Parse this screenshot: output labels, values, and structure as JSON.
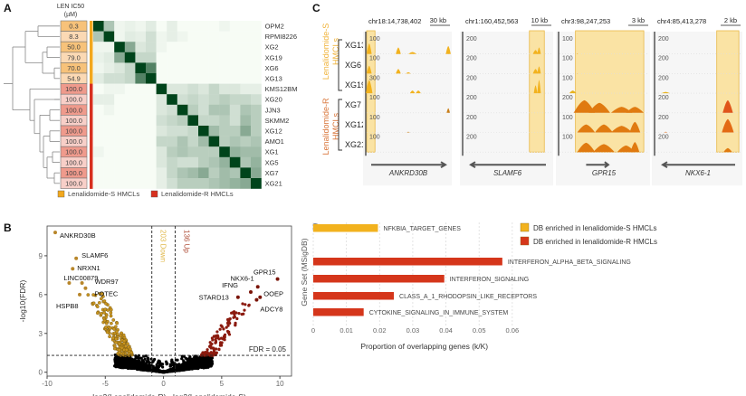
{
  "panels": {
    "A": {
      "letter": "A",
      "ic50_header": [
        "LEN IC50",
        "(µM)"
      ],
      "cell_lines": [
        "OPM2",
        "RPMI8226",
        "XG2",
        "XG19",
        "XG6",
        "XG13",
        "KMS12BM",
        "XG20",
        "JJN3",
        "SKMM2",
        "XG12",
        "AMO1",
        "XG1",
        "XG5",
        "XG7",
        "XG21"
      ],
      "ic50_values": [
        "0.3",
        "8.3",
        "50.0",
        "79.0",
        "70.0",
        "54.9",
        "100.0",
        "100.0",
        "100.0",
        "100.0",
        "100.0",
        "100.0",
        "100.0",
        "100.0",
        "100.0",
        "100.0"
      ],
      "group": [
        "S",
        "S",
        "S",
        "S",
        "S",
        "S",
        "R",
        "R",
        "R",
        "R",
        "R",
        "R",
        "R",
        "R",
        "R",
        "R"
      ],
      "legend": [
        {
          "label": "Lenalidomide-S HMCLs",
          "color": "#f2a81e"
        },
        {
          "label": "Lenalidomide-R HMCLs",
          "color": "#d7301f"
        }
      ],
      "heatmap_type": "correlation",
      "heatmap_scale": "white-to-dark-green",
      "heatmap_values": [
        [
          1.0,
          0.35,
          0.05,
          0.08,
          0.05,
          0.12,
          0.0,
          0.1,
          0.0,
          0.0,
          0.0,
          0.0,
          0.05,
          0.0,
          0.0,
          0.0
        ],
        [
          0.35,
          1.0,
          0.05,
          0.12,
          0.1,
          0.2,
          0.05,
          0.1,
          0.05,
          0.0,
          0.0,
          0.0,
          0.0,
          0.0,
          0.0,
          0.0
        ],
        [
          0.05,
          0.05,
          1.0,
          0.5,
          0.15,
          0.2,
          0.05,
          0.0,
          0.0,
          0.0,
          0.0,
          0.0,
          0.0,
          0.0,
          0.0,
          0.0
        ],
        [
          0.08,
          0.12,
          0.5,
          1.0,
          0.25,
          0.25,
          0.0,
          0.0,
          0.0,
          0.0,
          0.0,
          0.0,
          0.0,
          0.0,
          0.0,
          0.0
        ],
        [
          0.05,
          0.1,
          0.15,
          0.25,
          1.0,
          0.7,
          0.0,
          0.0,
          0.0,
          0.0,
          0.0,
          0.0,
          0.0,
          0.0,
          0.0,
          0.0
        ],
        [
          0.12,
          0.2,
          0.2,
          0.25,
          0.7,
          1.0,
          0.0,
          0.0,
          0.0,
          0.0,
          0.0,
          0.0,
          0.0,
          0.0,
          0.0,
          0.0
        ],
        [
          0.0,
          0.05,
          0.05,
          0.0,
          0.0,
          0.0,
          1.0,
          0.15,
          0.15,
          0.2,
          0.15,
          0.25,
          0.15,
          0.15,
          0.1,
          0.1
        ],
        [
          0.1,
          0.1,
          0.0,
          0.0,
          0.0,
          0.0,
          0.15,
          1.0,
          0.2,
          0.25,
          0.2,
          0.25,
          0.3,
          0.25,
          0.25,
          0.2
        ],
        [
          0.0,
          0.05,
          0.0,
          0.0,
          0.0,
          0.0,
          0.15,
          0.2,
          1.0,
          0.3,
          0.2,
          0.35,
          0.35,
          0.2,
          0.35,
          0.3
        ],
        [
          0.0,
          0.0,
          0.0,
          0.0,
          0.0,
          0.0,
          0.2,
          0.25,
          0.3,
          1.0,
          0.25,
          0.25,
          0.3,
          0.2,
          0.4,
          0.3
        ],
        [
          0.0,
          0.0,
          0.0,
          0.0,
          0.0,
          0.0,
          0.15,
          0.2,
          0.2,
          0.25,
          1.0,
          0.4,
          0.3,
          0.3,
          0.5,
          0.3
        ],
        [
          0.0,
          0.0,
          0.0,
          0.0,
          0.0,
          0.0,
          0.25,
          0.25,
          0.35,
          0.25,
          0.4,
          1.0,
          0.3,
          0.35,
          0.3,
          0.35
        ],
        [
          0.05,
          0.0,
          0.0,
          0.0,
          0.0,
          0.0,
          0.15,
          0.3,
          0.35,
          0.3,
          0.3,
          0.3,
          1.0,
          0.45,
          0.4,
          0.4
        ],
        [
          0.0,
          0.0,
          0.0,
          0.0,
          0.0,
          0.0,
          0.15,
          0.25,
          0.2,
          0.2,
          0.3,
          0.35,
          0.45,
          1.0,
          0.35,
          0.45
        ],
        [
          0.0,
          0.0,
          0.0,
          0.0,
          0.0,
          0.0,
          0.1,
          0.25,
          0.35,
          0.4,
          0.5,
          0.3,
          0.4,
          0.35,
          1.0,
          0.5
        ],
        [
          0.0,
          0.0,
          0.0,
          0.0,
          0.0,
          0.0,
          0.1,
          0.2,
          0.3,
          0.3,
          0.3,
          0.35,
          0.4,
          0.45,
          0.5,
          1.0
        ]
      ]
    },
    "C": {
      "letter": "C",
      "group_labels": [
        {
          "lines": [
            "Lenalidomide-S",
            "HMCLs"
          ],
          "color": "#f0b43c"
        },
        {
          "lines": [
            "Lenalidomide-R",
            "HMCLs"
          ],
          "color": "#d9763a"
        }
      ],
      "samples": [
        "XG13",
        "XG6",
        "XG19",
        "XG7",
        "XG12",
        "XG21"
      ],
      "tracks": [
        {
          "locus": "chr18:14,738,402",
          "scale": "30 kb",
          "gene": "ANKRD30B",
          "direction": "right",
          "ymax": [
            "100",
            "100",
            "300",
            "100",
            "100",
            "100"
          ]
        },
        {
          "locus": "chr1:160,452,563",
          "scale": "10 kb",
          "gene": "SLAMF6",
          "direction": "left",
          "ymax": [
            "200",
            "200",
            "200",
            "200",
            "200",
            "200"
          ]
        },
        {
          "locus": "chr3:98,247,253",
          "scale": "3 kb",
          "gene": "GPR15",
          "direction": "right",
          "ymax": [
            "100",
            "100",
            "100",
            "200",
            "100",
            "100"
          ]
        },
        {
          "locus": "chr4:85,413,278",
          "scale": "2 kb",
          "gene": "NKX6-1",
          "direction": "left",
          "ymax": [
            "200",
            "200",
            "200",
            "200",
            "200",
            "200"
          ]
        }
      ]
    },
    "B": {
      "letter": "B",
      "annotations": {
        "down": "203 Down",
        "up": "136 Up",
        "fdr": "FDR = 0.05"
      }
    },
    "D": {
      "letter": "D",
      "legend": [
        {
          "label": "DB enriched in lenalidomide-S HMCLs",
          "color": "#f2b21e"
        },
        {
          "label": "DB enriched in lenalidomide-R HMCLs",
          "color": "#d5361b"
        }
      ]
    }
  },
  "chart_data": [
    {
      "panel": "B",
      "type": "scatter",
      "title": "",
      "xlabel": "log2(Lenalidomide-R) - log2(Lenalidomide-S)",
      "ylabel": "-log10(FDR)",
      "xlim": [
        -10,
        11
      ],
      "ylim": [
        -0.3,
        11.3
      ],
      "xticks": [
        -10,
        -5,
        0,
        5,
        10
      ],
      "yticks": [
        0,
        3,
        6,
        9
      ],
      "vlines": [
        -1,
        1
      ],
      "hline": 1.3,
      "series": [
        {
          "name": "Down (S-enriched)",
          "color": "#c8941e",
          "count": 203
        },
        {
          "name": "Up (R-enriched)",
          "color": "#8b1a0e",
          "count": 136
        },
        {
          "name": "Not significant",
          "color": "#000000"
        }
      ],
      "labeled_points": [
        {
          "label": "ANKRD30B",
          "x": -9.3,
          "y": 10.8,
          "group": "down"
        },
        {
          "label": "SLAMF6",
          "x": -7.5,
          "y": 8.8,
          "group": "down"
        },
        {
          "label": "NRXN1",
          "x": -7.8,
          "y": 8.0,
          "group": "down"
        },
        {
          "label": "LINC00879",
          "x": -8.1,
          "y": 6.9,
          "group": "down"
        },
        {
          "label": "WDR97",
          "x": -7.0,
          "y": 6.9,
          "group": "down"
        },
        {
          "label": "POTEC",
          "x": -6.7,
          "y": 6.5,
          "group": "down"
        },
        {
          "label": "HSPB8",
          "x": -7.2,
          "y": 6.0,
          "group": "down"
        },
        {
          "label": "GPR15",
          "x": 9.8,
          "y": 7.2,
          "group": "up"
        },
        {
          "label": "NKX6-1",
          "x": 8.1,
          "y": 6.6,
          "group": "up"
        },
        {
          "label": "OOEP",
          "x": 8.3,
          "y": 5.8,
          "group": "up"
        },
        {
          "label": "IFNG",
          "x": 7.5,
          "y": 6.2,
          "group": "up"
        },
        {
          "label": "STARD13",
          "x": 6.4,
          "y": 5.8,
          "group": "up"
        },
        {
          "label": "ADCY8",
          "x": 8.0,
          "y": 5.6,
          "group": "up"
        }
      ]
    },
    {
      "panel": "D",
      "type": "bar",
      "orientation": "horizontal",
      "title": "",
      "xlabel": "Proportion of overlapping genes (k/K)",
      "ylabel": "Gene Set (MSigDB)",
      "xlim": [
        0,
        0.065
      ],
      "xticks": [
        0,
        0.01,
        0.02,
        0.03,
        0.04,
        0.05,
        0.06
      ],
      "xtick_labels": [
        "0",
        "0.01",
        "0.02",
        "0.03",
        "0.04",
        "0.05",
        "0.06"
      ],
      "legend_position": "top-right",
      "categories": [
        "NFKBIA_TARGET_GENES",
        "INTERFERON_ALPHA_BETA_SIGNALING",
        "INTERFERON_SIGNALING",
        "CLASS_A_1_RHODOPSIN_LIKE_RECEPTORS",
        "CYTOKINE_SIGNALING_IN_IMMUNE_SYSTEM"
      ],
      "values": [
        0.0195,
        0.057,
        0.0395,
        0.0243,
        0.0152
      ],
      "groups": [
        "S",
        "R",
        "R",
        "R",
        "R"
      ]
    }
  ]
}
